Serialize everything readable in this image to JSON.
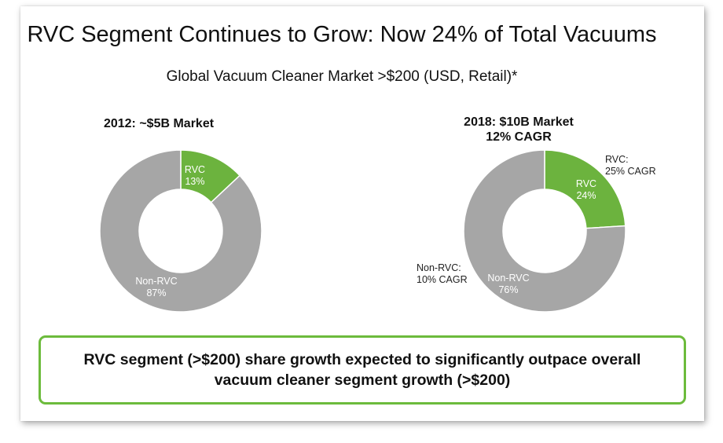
{
  "title": "RVC Segment Continues to Grow: Now 24% of Total Vacuums",
  "subtitle": "Global Vacuum Cleaner Market >$200 (USD, Retail)*",
  "chart_data": [
    {
      "type": "pie",
      "title": "2012: ~$5B Market",
      "subtitle": "",
      "colors": {
        "RVC": "#6cb33e",
        "Non-RVC": "#a6a6a6"
      },
      "slices": [
        {
          "label": "RVC",
          "value": 13,
          "display": "13%"
        },
        {
          "label": "Non-RVC",
          "value": 87,
          "display": "87%"
        }
      ]
    },
    {
      "type": "pie",
      "title": "2018: $10B Market",
      "subtitle": "12% CAGR",
      "colors": {
        "RVC": "#6cb33e",
        "Non-RVC": "#a6a6a6"
      },
      "slices": [
        {
          "label": "RVC",
          "value": 24,
          "display": "24%",
          "annotation": [
            "RVC:",
            "25% CAGR"
          ]
        },
        {
          "label": "Non-RVC",
          "value": 76,
          "display": "76%",
          "annotation": [
            "Non-RVC:",
            "10% CAGR"
          ]
        }
      ]
    }
  ],
  "callout": {
    "line1": "RVC segment (>$200) share growth expected to significantly outpace overall",
    "line2": "vacuum cleaner segment growth (>$200)"
  }
}
